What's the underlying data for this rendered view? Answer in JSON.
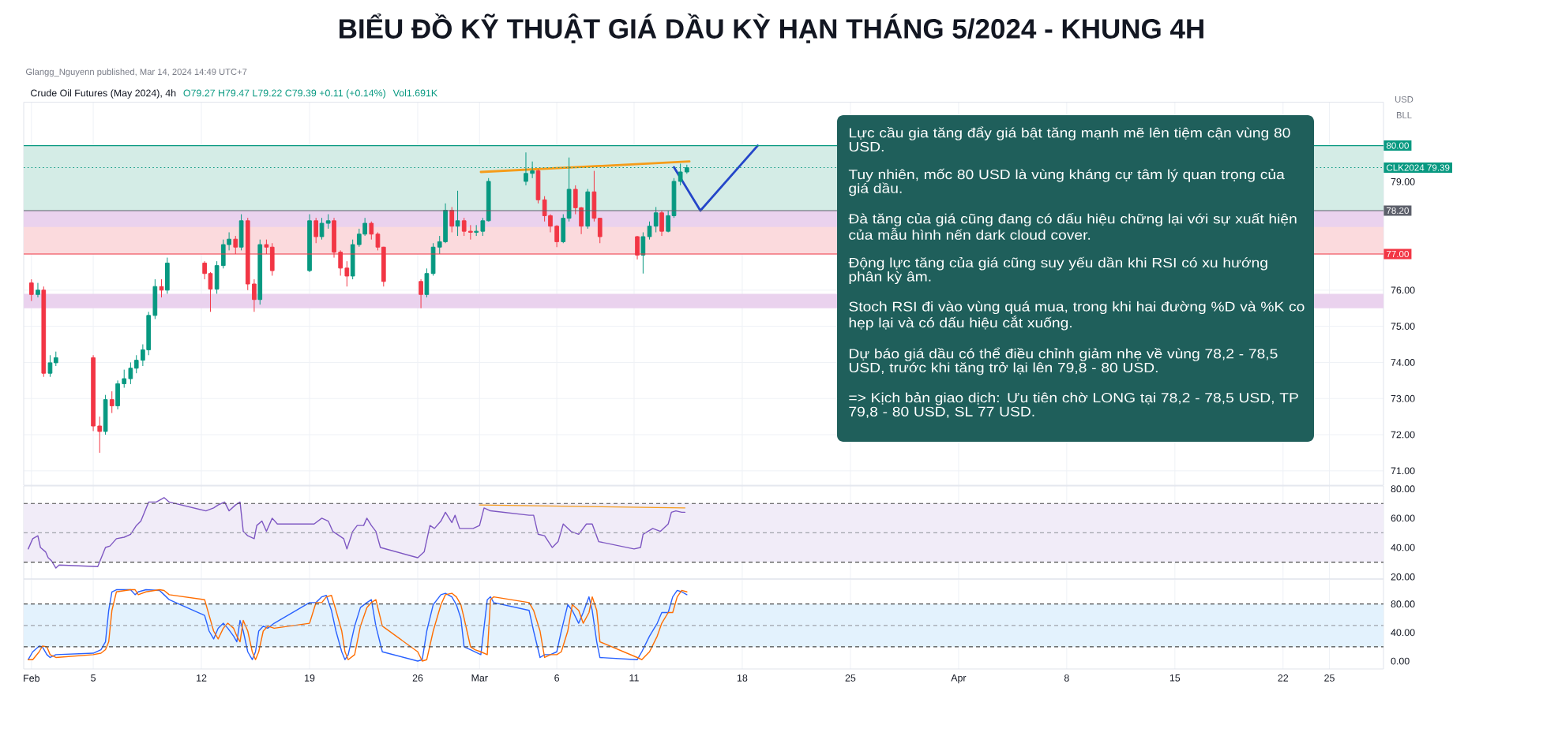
{
  "chart_data": [
    {
      "type": "candlestick",
      "title": "BIỂU ĐỒ KỸ THUẬT GIÁ DẦU KỲ HẠN THÁNG 5/2024 - KHUNG 4H",
      "annotations": [
        "Glangg_Nguyenn published, Mar 14, 2024 14:49 UTC+7",
        "Crude Oil Futures (May 2024), 4h",
        "O79.27 H79.47 L79.22 C79.39 +0.11 (+0.14%)",
        "Vol1.691K",
        "USD",
        "BLL"
      ],
      "x": [
        "2024-02-01T00:00",
        "2024-02-01T10:00",
        "2024-02-01T19:00",
        "2024-02-02T05:00",
        "2024-02-02T14:00",
        "2024-02-05T00:00",
        "2024-02-05T10:00",
        "2024-02-05T19:00",
        "2024-02-06T05:00",
        "2024-02-06T14:00",
        "2024-02-07T00:00",
        "2024-02-07T10:00",
        "2024-02-07T19:00",
        "2024-02-08T05:00",
        "2024-02-08T14:00",
        "2024-02-09T00:00",
        "2024-02-09T10:00",
        "2024-02-09T19:00",
        "2024-02-12T05:00",
        "2024-02-12T14:00",
        "2024-02-13T00:00",
        "2024-02-13T10:00",
        "2024-02-13T19:00",
        "2024-02-14T05:00",
        "2024-02-14T14:00",
        "2024-02-15T00:00",
        "2024-02-15T10:00",
        "2024-02-15T19:00",
        "2024-02-16T05:00",
        "2024-02-16T14:00",
        "2024-02-19T00:00",
        "2024-02-19T10:00",
        "2024-02-19T19:00",
        "2024-02-20T05:00",
        "2024-02-20T14:00",
        "2024-02-21T00:00",
        "2024-02-21T10:00",
        "2024-02-21T19:00",
        "2024-02-22T05:00",
        "2024-02-22T14:00",
        "2024-02-23T00:00",
        "2024-02-23T10:00",
        "2024-02-23T19:00",
        "2024-02-26T05:00",
        "2024-02-26T14:00",
        "2024-02-27T00:00",
        "2024-02-27T10:00",
        "2024-02-27T19:00",
        "2024-02-28T05:00",
        "2024-02-28T14:00",
        "2024-02-29T00:00",
        "2024-02-29T10:00",
        "2024-02-29T19:00",
        "2024-03-01T05:00",
        "2024-03-01T14:00",
        "2024-03-04T00:00",
        "2024-03-04T10:00",
        "2024-03-04T19:00",
        "2024-03-05T05:00",
        "2024-03-05T14:00",
        "2024-03-06T00:00",
        "2024-03-06T10:00",
        "2024-03-06T19:00",
        "2024-03-07T05:00",
        "2024-03-07T14:00",
        "2024-03-08T00:00",
        "2024-03-08T10:00",
        "2024-03-08T19:00",
        "2024-03-11T05:00",
        "2024-03-11T14:00",
        "2024-03-12T00:00",
        "2024-03-12T10:00",
        "2024-03-12T19:00",
        "2024-03-13T05:00",
        "2024-03-13T14:00",
        "2024-03-14T00:00",
        "2024-03-14T10:00"
      ],
      "ohlc": [
        [
          76.2,
          76.3,
          75.7,
          75.88
        ],
        [
          75.88,
          76.2,
          75.8,
          76.0
        ],
        [
          76.0,
          76.1,
          73.6,
          73.7
        ],
        [
          73.7,
          74.2,
          73.6,
          73.99
        ],
        [
          73.99,
          74.3,
          73.9,
          74.13
        ],
        [
          74.13,
          74.2,
          72.1,
          72.24
        ],
        [
          72.24,
          72.5,
          71.5,
          72.09
        ],
        [
          72.09,
          73.1,
          72.0,
          72.97
        ],
        [
          72.97,
          73.2,
          72.6,
          72.8
        ],
        [
          72.8,
          73.5,
          72.7,
          73.41
        ],
        [
          73.41,
          73.8,
          73.3,
          73.55
        ],
        [
          73.55,
          74.0,
          73.4,
          73.84
        ],
        [
          73.84,
          74.2,
          73.7,
          74.06
        ],
        [
          74.06,
          74.5,
          73.9,
          74.35
        ],
        [
          74.35,
          75.4,
          74.2,
          75.3
        ],
        [
          75.3,
          76.3,
          75.2,
          76.1
        ],
        [
          76.1,
          76.3,
          75.8,
          76.0
        ],
        [
          76.0,
          76.9,
          75.9,
          76.75
        ],
        [
          76.75,
          76.8,
          76.3,
          76.46
        ],
        [
          76.46,
          76.5,
          75.4,
          76.03
        ],
        [
          76.03,
          76.8,
          75.9,
          76.68
        ],
        [
          76.68,
          77.4,
          76.6,
          77.26
        ],
        [
          77.26,
          77.6,
          77.1,
          77.41
        ],
        [
          77.41,
          77.5,
          77.0,
          77.19
        ],
        [
          77.19,
          78.1,
          77.1,
          77.92
        ],
        [
          77.92,
          78.0,
          76.0,
          76.17
        ],
        [
          76.17,
          76.3,
          75.4,
          75.74
        ],
        [
          75.74,
          77.4,
          75.6,
          77.26
        ],
        [
          77.26,
          77.4,
          77.0,
          77.19
        ],
        [
          77.19,
          77.3,
          76.4,
          76.54
        ],
        [
          76.54,
          78.1,
          76.5,
          77.92
        ],
        [
          77.92,
          78.0,
          77.3,
          77.48
        ],
        [
          77.48,
          78.0,
          77.4,
          77.85
        ],
        [
          77.85,
          78.1,
          77.7,
          77.92
        ],
        [
          77.92,
          78.0,
          76.9,
          77.05
        ],
        [
          77.05,
          77.1,
          76.4,
          76.61
        ],
        [
          76.61,
          76.8,
          76.1,
          76.39
        ],
        [
          76.39,
          77.4,
          76.3,
          77.26
        ],
        [
          77.26,
          77.7,
          77.2,
          77.55
        ],
        [
          77.55,
          78.0,
          77.5,
          77.85
        ],
        [
          77.85,
          77.9,
          77.4,
          77.55
        ],
        [
          77.55,
          77.6,
          77.1,
          77.19
        ],
        [
          77.19,
          77.2,
          76.1,
          76.24
        ],
        [
          76.24,
          76.3,
          75.5,
          75.88
        ],
        [
          75.88,
          76.6,
          75.8,
          76.46
        ],
        [
          76.46,
          77.3,
          76.4,
          77.19
        ],
        [
          77.19,
          77.5,
          77.0,
          77.34
        ],
        [
          77.34,
          78.4,
          77.3,
          78.21
        ],
        [
          78.21,
          78.3,
          77.6,
          77.77
        ],
        [
          77.77,
          78.75,
          77.5,
          77.92
        ],
        [
          77.92,
          78.0,
          77.5,
          77.63
        ],
        [
          77.63,
          77.8,
          77.4,
          77.6
        ],
        [
          77.6,
          77.8,
          77.5,
          77.63
        ],
        [
          77.63,
          78.0,
          77.5,
          77.92
        ],
        [
          77.92,
          79.1,
          77.9,
          79.01
        ],
        [
          79.01,
          79.81,
          78.9,
          79.23
        ],
        [
          79.23,
          79.56,
          79.1,
          79.3
        ],
        [
          79.3,
          79.35,
          78.4,
          78.5
        ],
        [
          78.5,
          78.6,
          77.9,
          78.06
        ],
        [
          78.06,
          78.1,
          77.6,
          77.77
        ],
        [
          77.77,
          77.8,
          77.19,
          77.34
        ],
        [
          77.34,
          78.1,
          77.3,
          77.99
        ],
        [
          77.99,
          79.67,
          77.9,
          78.79
        ],
        [
          78.79,
          78.9,
          78.1,
          78.28
        ],
        [
          78.28,
          78.3,
          77.55,
          77.77
        ],
        [
          77.77,
          78.8,
          77.7,
          78.72
        ],
        [
          78.72,
          79.3,
          77.9,
          77.99
        ],
        [
          77.99,
          78.0,
          77.3,
          77.48
        ],
        [
          77.48,
          77.5,
          76.85,
          76.97
        ],
        [
          76.97,
          77.6,
          76.46,
          77.48
        ],
        [
          77.48,
          77.9,
          77.4,
          77.77
        ],
        [
          77.77,
          78.3,
          77.6,
          78.14
        ],
        [
          78.14,
          78.2,
          77.5,
          77.63
        ],
        [
          77.63,
          78.2,
          77.6,
          78.06
        ],
        [
          78.06,
          79.1,
          78.0,
          79.01
        ],
        [
          79.01,
          79.5,
          78.9,
          79.27
        ],
        [
          79.27,
          79.47,
          79.22,
          79.39
        ]
      ],
      "series": [
        {
          "type": "line",
          "color": "#f59c1a",
          "x": [
            "2024-03-01T02:00",
            "2024-03-14T14:00"
          ],
          "values": [
            79.27,
            79.56
          ]
        },
        {
          "type": "line",
          "color": "#2446c9",
          "x": [
            "2024-03-13T14:00",
            "2024-03-15T07:00",
            "2024-03-19T00:00"
          ],
          "values": [
            79.4,
            78.2,
            80.0
          ]
        }
      ],
      "xlim": [
        "2024-01-31T12:00",
        "2024-04-28T12:00"
      ],
      "ylim": [
        70.6,
        81.2
      ],
      "xticks": [
        "2024-02-01",
        "2024-02-05",
        "2024-02-12",
        "2024-02-19",
        "2024-02-26",
        "2024-03-01",
        "2024-03-06",
        "2024-03-11",
        "2024-03-18",
        "2024-03-25",
        "2024-04-01",
        "2024-04-08",
        "2024-04-15",
        "2024-04-22",
        "2024-04-25"
      ],
      "yticks": [
        {
          "value": 71,
          "label": "71.00"
        },
        {
          "value": 72,
          "label": "72.00"
        },
        {
          "value": 73,
          "label": "73.00"
        },
        {
          "value": 74,
          "label": "74.00"
        },
        {
          "value": 75,
          "label": "75.00"
        },
        {
          "value": 76,
          "label": "76.00"
        },
        {
          "value": 77,
          "label": null
        },
        {
          "value": 78,
          "label": null
        },
        {
          "value": 79,
          "label": "79.00"
        },
        {
          "value": 80,
          "label": null
        }
      ],
      "grid": true,
      "tick_labels": "y",
      "bands": [
        {
          "axis": "y",
          "from": 78.2,
          "to": 80,
          "color": "#d4ece6"
        },
        {
          "axis": "y",
          "from": 77,
          "to": 78.2,
          "color": "#fbdadd"
        },
        {
          "axis": "y",
          "from": 77.75,
          "to": 78.2,
          "color": "#ead2ee"
        },
        {
          "axis": "y",
          "from": 75.5,
          "to": 75.9,
          "color": "#ead2ee"
        }
      ],
      "ref_lines": [
        {
          "axis": "y",
          "value": 80,
          "label": "80.00",
          "color": "#089981"
        },
        {
          "axis": "y",
          "value": 79.39,
          "label": "CLK2024 79.39",
          "color": "#089981",
          "line_style": "dotted"
        },
        {
          "axis": "y",
          "value": 78.2,
          "label": "78.20",
          "color": "#5d606b"
        },
        {
          "axis": "y",
          "value": 77,
          "label": "77.00",
          "color": "#f23645"
        }
      ]
    },
    {
      "type": "line",
      "x": [
        "2024-01-31T19:00",
        "2024-02-01T02:00",
        "2024-02-01T10:00",
        "2024-02-01T14:00",
        "2024-02-01T22:00",
        "2024-02-02T02:00",
        "2024-02-02T07:00",
        "2024-02-02T14:00",
        "2024-02-02T19:00",
        "2024-02-05T07:00",
        "2024-02-05T19:00",
        "2024-02-06T02:00",
        "2024-02-06T12:00",
        "2024-02-07T00:00",
        "2024-02-07T10:00",
        "2024-02-07T19:00",
        "2024-02-08T02:00",
        "2024-02-08T14:00",
        "2024-02-09T02:00",
        "2024-02-09T14:00",
        "2024-02-09T22:00",
        "2024-02-12T07:00",
        "2024-02-12T19:00",
        "2024-02-13T02:00",
        "2024-02-13T12:00",
        "2024-02-13T19:00",
        "2024-02-14T05:00",
        "2024-02-14T12:00",
        "2024-02-14T17:00",
        "2024-02-15T00:00",
        "2024-02-15T10:00",
        "2024-02-15T14:00",
        "2024-02-15T22:00",
        "2024-02-16T05:00",
        "2024-02-16T14:00",
        "2024-02-16T22:00",
        "2024-02-19T07:00",
        "2024-02-19T19:00",
        "2024-02-20T05:00",
        "2024-02-20T12:00",
        "2024-02-20T19:00",
        "2024-02-21T05:00",
        "2024-02-21T10:00",
        "2024-02-21T19:00",
        "2024-02-22T02:00",
        "2024-02-22T12:00",
        "2024-02-22T17:00",
        "2024-02-23T00:00",
        "2024-02-23T07:00",
        "2024-02-23T14:00",
        "2024-02-26T00:00",
        "2024-02-26T10:00",
        "2024-02-26T19:00",
        "2024-02-27T02:00",
        "2024-02-27T12:00",
        "2024-02-27T19:00",
        "2024-02-28T05:00",
        "2024-02-28T10:00",
        "2024-02-28T17:00",
        "2024-02-29T02:00",
        "2024-02-29T14:00",
        "2024-03-01T00:00",
        "2024-03-01T07:00",
        "2024-03-01T17:00",
        "2024-03-04T05:00",
        "2024-03-04T12:00",
        "2024-03-04T19:00",
        "2024-03-05T05:00",
        "2024-03-05T17:00",
        "2024-03-06T02:00",
        "2024-03-06T10:00",
        "2024-03-06T22:00",
        "2024-03-07T10:00",
        "2024-03-07T22:00",
        "2024-03-08T07:00",
        "2024-03-08T17:00",
        "2024-03-11T00:00",
        "2024-03-11T10:00",
        "2024-03-11T14:00",
        "2024-03-12T05:00",
        "2024-03-12T17:00",
        "2024-03-13T05:00",
        "2024-03-13T10:00",
        "2024-03-13T17:00",
        "2024-03-14T02:00",
        "2024-03-14T07:00"
      ],
      "series": [
        {
          "color": "#7e57c2",
          "values": [
            39,
            46,
            48,
            40,
            37,
            33,
            31,
            26,
            28,
            27,
            40,
            41,
            46,
            47,
            49,
            55,
            58,
            71,
            71,
            74,
            71,
            65,
            67,
            69,
            71,
            65,
            69,
            71,
            51,
            48,
            46,
            55,
            58,
            51,
            60,
            56,
            56,
            60,
            58,
            51,
            49,
            46,
            39,
            51,
            55,
            55,
            60,
            55,
            51,
            40,
            33,
            37,
            55,
            53,
            58,
            64,
            57,
            62,
            53,
            53,
            53,
            55,
            67,
            65,
            62,
            62,
            49,
            48,
            40,
            44,
            56,
            51,
            49,
            56,
            56,
            44,
            39,
            40,
            49,
            53,
            51,
            56,
            64,
            65,
            64,
            64
          ]
        },
        {
          "color": "#f59c1a",
          "x": [
            "2024-03-01T00:00",
            "2024-03-14T07:00"
          ],
          "values": [
            69,
            67
          ]
        }
      ],
      "xlim": [
        "2024-01-31T12:00",
        "2024-04-28T12:00"
      ],
      "ylim": [
        18.5,
        82
      ],
      "xticks": [
        "2024-02-01",
        "2024-02-05",
        "2024-02-12",
        "2024-02-19",
        "2024-02-26",
        "2024-03-01",
        "2024-03-06",
        "2024-03-11",
        "2024-03-18",
        "2024-03-25",
        "2024-04-01",
        "2024-04-08",
        "2024-04-15",
        "2024-04-22",
        "2024-04-25"
      ],
      "yticks": [
        {
          "value": 20,
          "label": "20.00"
        },
        {
          "value": 40,
          "label": "40.00"
        },
        {
          "value": 60,
          "label": "60.00"
        },
        {
          "value": 80,
          "label": "80.00"
        }
      ],
      "grid": "x",
      "tick_labels": "y",
      "bands": [
        {
          "axis": "y",
          "from": 30,
          "to": 70,
          "color": "#f1ecf8"
        }
      ],
      "ref_lines": [
        {
          "axis": "y",
          "value": 70,
          "color": "#4a4a4a",
          "line_style": "dashed"
        },
        {
          "axis": "y",
          "value": 50,
          "color": "#a0a3ab",
          "line_style": "dashed"
        },
        {
          "axis": "y",
          "value": 30,
          "color": "#4a4a4a",
          "line_style": "dashed"
        }
      ]
    },
    {
      "type": "line",
      "x": [
        "2024-01-31T19:00",
        "2024-02-01T02:00",
        "2024-02-01T12:00",
        "2024-02-01T17:00",
        "2024-02-02T00:00",
        "2024-02-02T05:00",
        "2024-02-02T14:00",
        "2024-02-05T00:00",
        "2024-02-05T12:00",
        "2024-02-05T19:00",
        "2024-02-06T00:00",
        "2024-02-06T05:00",
        "2024-02-06T12:00",
        "2024-02-07T10:00",
        "2024-02-07T17:00",
        "2024-02-07T22:00",
        "2024-02-08T10:00",
        "2024-02-09T07:00",
        "2024-02-09T14:00",
        "2024-02-09T22:00",
        "2024-02-12T05:00",
        "2024-02-12T12:00",
        "2024-02-12T19:00",
        "2024-02-13T02:00",
        "2024-02-13T10:00",
        "2024-02-13T17:00",
        "2024-02-14T02:00",
        "2024-02-14T07:00",
        "2024-02-14T12:00",
        "2024-02-14T17:00",
        "2024-02-15T00:00",
        "2024-02-15T07:00",
        "2024-02-15T12:00",
        "2024-02-15T17:00",
        "2024-02-16T00:00",
        "2024-02-16T07:00",
        "2024-02-16T17:00",
        "2024-02-19T00:00",
        "2024-02-19T10:00",
        "2024-02-19T19:00",
        "2024-02-20T02:00",
        "2024-02-20T10:00",
        "2024-02-20T17:00",
        "2024-02-21T02:00",
        "2024-02-21T07:00",
        "2024-02-21T12:00",
        "2024-02-21T22:00",
        "2024-02-22T07:00",
        "2024-02-22T17:00",
        "2024-02-23T00:00",
        "2024-02-23T07:00",
        "2024-02-23T17:00",
        "2024-02-26T00:00",
        "2024-02-26T07:00",
        "2024-02-26T14:00",
        "2024-02-27T00:00",
        "2024-02-27T12:00",
        "2024-02-27T19:00",
        "2024-02-28T05:00",
        "2024-02-28T12:00",
        "2024-02-28T19:00",
        "2024-02-29T00:00",
        "2024-02-29T10:00",
        "2024-02-29T17:00",
        "2024-03-01T02:00",
        "2024-03-01T12:00",
        "2024-03-01T17:00",
        "2024-03-01T22:00",
        "2024-03-04T05:00",
        "2024-03-04T12:00",
        "2024-03-04T22:00",
        "2024-03-05T05:00",
        "2024-03-05T14:00",
        "2024-03-06T00:00",
        "2024-03-06T07:00",
        "2024-03-06T17:00",
        "2024-03-07T00:00",
        "2024-03-07T10:00",
        "2024-03-07T17:00",
        "2024-03-08T02:00",
        "2024-03-08T07:00",
        "2024-03-08T14:00",
        "2024-03-08T19:00",
        "2024-03-11T05:00",
        "2024-03-11T12:00",
        "2024-03-12T00:00",
        "2024-03-12T12:00",
        "2024-03-12T19:00",
        "2024-03-13T05:00",
        "2024-03-13T12:00",
        "2024-03-13T19:00",
        "2024-03-14T02:00",
        "2024-03-14T10:00"
      ],
      "series": [
        {
          "color": "#2962ff",
          "values": [
            2,
            13,
            21,
            20,
            9,
            5,
            9,
            11,
            16,
            27,
            71,
            97,
            100,
            100,
            93,
            97,
            100,
            99,
            93,
            86,
            64,
            42,
            31,
            46,
            53,
            46,
            35,
            27,
            57,
            42,
            13,
            2,
            13,
            42,
            49,
            46,
            53,
            82,
            82,
            90,
            92,
            71,
            42,
            13,
            2,
            9,
            49,
            75,
            82,
            86,
            49,
            13,
            0,
            2,
            42,
            79,
            93,
            95,
            90,
            79,
            60,
            20,
            16,
            13,
            9,
            86,
            90,
            82,
            71,
            42,
            5,
            9,
            9,
            13,
            42,
            79,
            71,
            53,
            68,
            90,
            71,
            27,
            5,
            2,
            13,
            35,
            53,
            68,
            68,
            90,
            99,
            97,
            93
          ]
        },
        {
          "color": "#ff6d00",
          "values": [
            2,
            2,
            13,
            21,
            20,
            9,
            5,
            9,
            11,
            16,
            27,
            71,
            97,
            100,
            100,
            93,
            97,
            100,
            99,
            93,
            86,
            64,
            42,
            31,
            46,
            53,
            46,
            35,
            27,
            57,
            42,
            13,
            2,
            13,
            42,
            49,
            46,
            53,
            82,
            82,
            90,
            92,
            71,
            42,
            13,
            2,
            9,
            49,
            75,
            82,
            86,
            49,
            13,
            0,
            2,
            42,
            79,
            93,
            95,
            90,
            79,
            60,
            20,
            16,
            13,
            9,
            86,
            90,
            82,
            71,
            42,
            5,
            9,
            9,
            13,
            42,
            79,
            71,
            53,
            68,
            90,
            71,
            27,
            5,
            2,
            13,
            35,
            53,
            68,
            68,
            90,
            99,
            97
          ]
        }
      ],
      "xlim": [
        "2024-01-31T12:00",
        "2024-04-28T12:00"
      ],
      "ylim": [
        -11,
        115
      ],
      "xticks": [
        {
          "value": "2024-02-01",
          "label": "Feb"
        },
        {
          "value": "2024-02-05",
          "label": "5"
        },
        {
          "value": "2024-02-12",
          "label": "12"
        },
        {
          "value": "2024-02-19",
          "label": "19"
        },
        {
          "value": "2024-02-26",
          "label": "26"
        },
        {
          "value": "2024-03-01",
          "label": "Mar"
        },
        {
          "value": "2024-03-06",
          "label": "6"
        },
        {
          "value": "2024-03-11",
          "label": "11"
        },
        {
          "value": "2024-03-18",
          "label": "18"
        },
        {
          "value": "2024-03-25",
          "label": "25"
        },
        {
          "value": "2024-04-01",
          "label": "Apr"
        },
        {
          "value": "2024-04-08",
          "label": "8"
        },
        {
          "value": "2024-04-15",
          "label": "15"
        },
        {
          "value": "2024-04-22",
          "label": "22"
        },
        {
          "value": "2024-04-25",
          "label": "25"
        }
      ],
      "yticks": [
        {
          "value": 0,
          "label": "0.00"
        },
        {
          "value": 40,
          "label": "40.00"
        },
        {
          "value": 80,
          "label": "80.00"
        }
      ],
      "grid": "x",
      "bands": [
        {
          "axis": "y",
          "from": 20,
          "to": 80,
          "color": "#e3f2fd"
        }
      ],
      "ref_lines": [
        {
          "axis": "y",
          "value": 80,
          "color": "#4a4a4a",
          "line_style": "dashed"
        },
        {
          "axis": "y",
          "value": 50,
          "color": "#a0a3ab",
          "line_style": "dashed"
        },
        {
          "axis": "y",
          "value": 20,
          "color": "#4a4a4a",
          "line_style": "dashed"
        }
      ]
    },
    {
      "type": "other",
      "annotations": [
        "Lực cầu gia tăng đẩy giá bật tăng mạnh mẽ lên tiệm cận vùng 80 USD.",
        "Tuy nhiên, mốc 80 USD là vùng kháng cự tâm lý quan trọng của giá dầu.",
        "Đà tăng của giá cũng đang có dấu hiệu chững lại với sự xuất hiện của mẫu hình nến dark cloud cover.",
        "Động lực tăng của giá cũng suy yếu dần khi RSI có xu hướng phân kỳ âm.",
        "Stoch RSI đi vào vùng quá mua, trong khi hai đường %D và %K co hẹp lại và có dấu hiệu cắt xuống.",
        "Dự báo giá dầu có thể điều chỉnh giảm nhẹ về vùng 78,2 - 78,5 USD, trước khi tăng trở lại lên 79,8 - 80 USD.",
        "=> Kịch bản giao dịch: Ưu tiên chờ LONG tại 78,2 - 78,5 USD, TP 79,8 - 80 USD, SL 77 USD."
      ]
    }
  ]
}
